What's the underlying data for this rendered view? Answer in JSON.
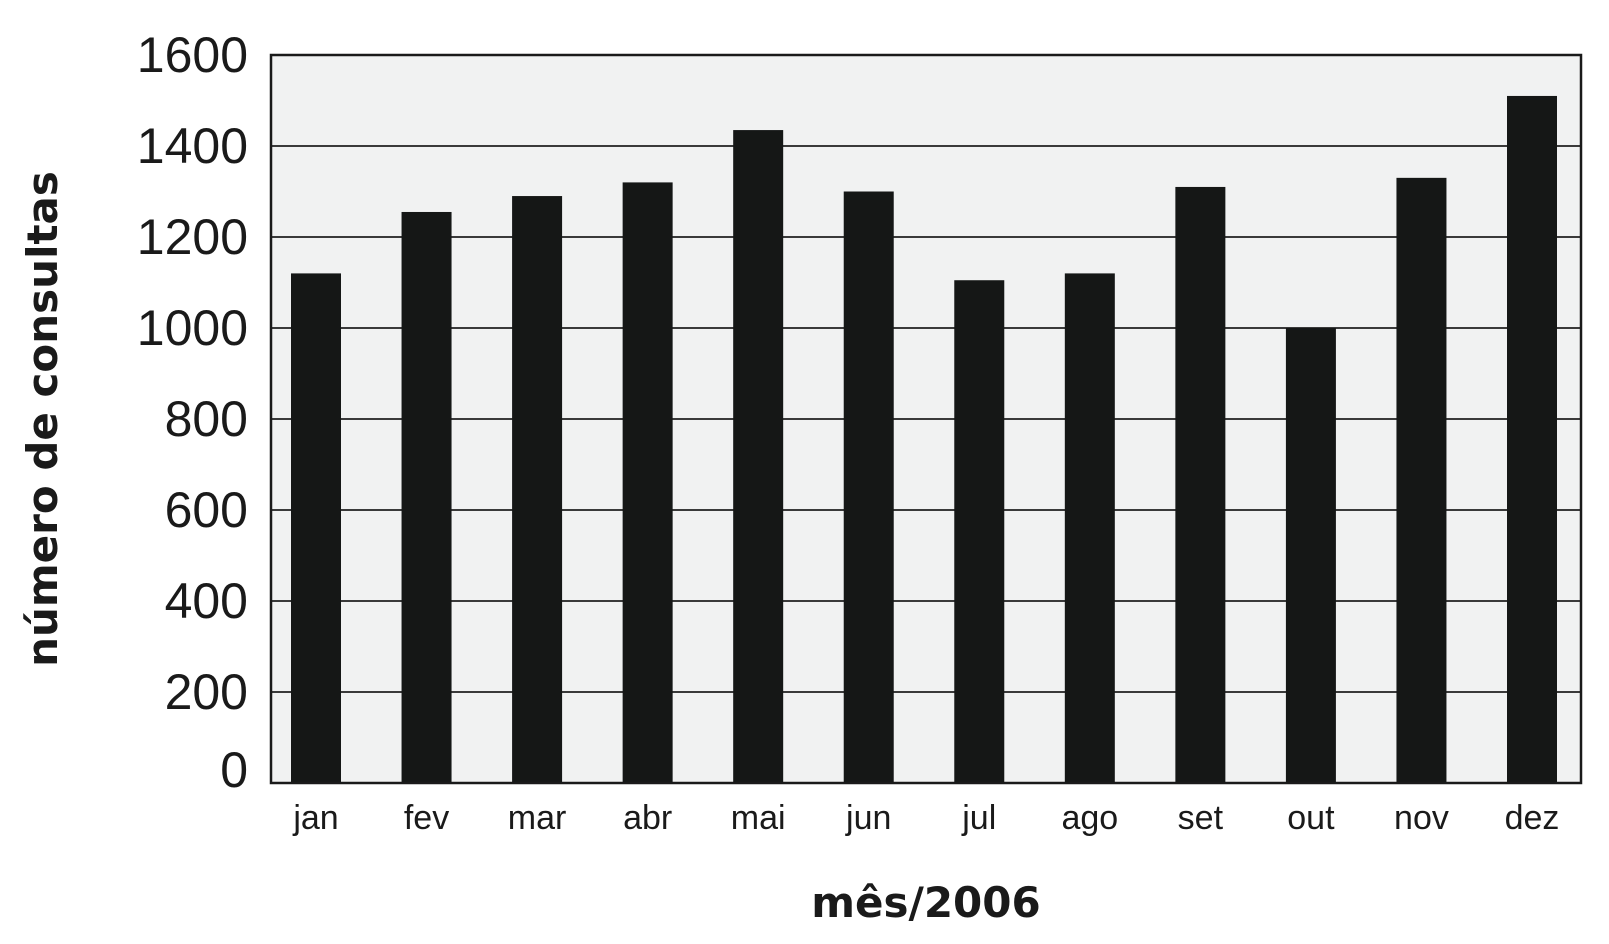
{
  "chart_data": {
    "type": "bar",
    "title": "",
    "xlabel": "mês/2006",
    "ylabel": "número de consultas",
    "categories": [
      "jan",
      "fev",
      "mar",
      "abr",
      "mai",
      "jun",
      "jul",
      "ago",
      "set",
      "out",
      "nov",
      "dez"
    ],
    "values": [
      1120,
      1255,
      1290,
      1320,
      1435,
      1300,
      1105,
      1120,
      1310,
      1000,
      1330,
      1510
    ],
    "ylim": [
      0,
      1600
    ],
    "yticks": [
      0,
      200,
      400,
      600,
      800,
      1000,
      1200,
      1400,
      1600
    ],
    "grid": true,
    "legend": "none",
    "colors": {
      "bar": "#151716",
      "plot_background": "#f1f2f2",
      "gridline": "#3a3a3a",
      "frame": "#1a1a1a",
      "text": "#1a1a1a"
    }
  }
}
